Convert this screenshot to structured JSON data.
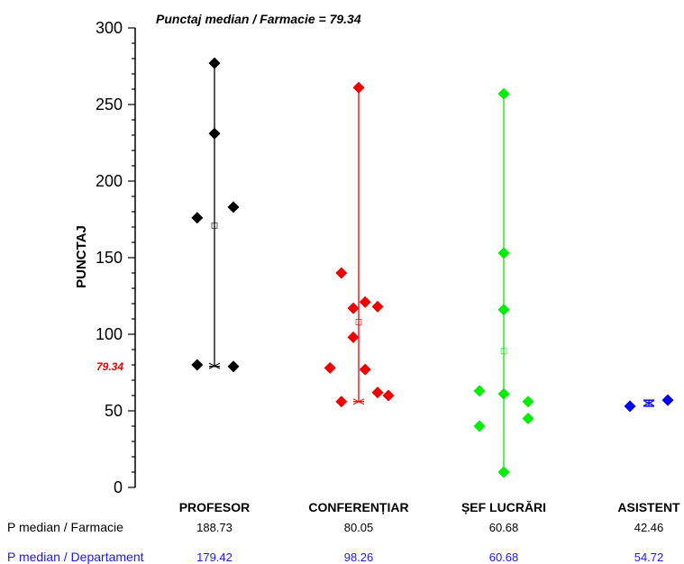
{
  "chart_data": {
    "type": "scatter",
    "title": "Punctaj median / Farmacie = 79.34",
    "ylabel": "PUNCTAJ",
    "xlabel": "",
    "ylim": [
      0,
      300
    ],
    "y_ticks": [
      "0",
      "50",
      "100",
      "150",
      "200",
      "250",
      "300"
    ],
    "reference_line": {
      "label": "79.34",
      "value": 79.34,
      "color": "#e00000"
    },
    "categories": [
      "PROFESOR",
      "CONFERENȚIAR",
      "ȘEF LUCRĂRI",
      "ASISTENT"
    ],
    "series": [
      {
        "category": "PROFESOR",
        "color": "#000000",
        "points": [
          {
            "offset": 0.0,
            "y": 277
          },
          {
            "offset": 0.0,
            "y": 231
          },
          {
            "offset": 0.35,
            "y": 183
          },
          {
            "offset": -0.32,
            "y": 176
          },
          {
            "offset": -0.32,
            "y": 80
          },
          {
            "offset": 0.35,
            "y": 79
          }
        ],
        "range": [
          79,
          277
        ],
        "mean": 171,
        "median_marker": 79.34
      },
      {
        "category": "CONFERENȚIAR",
        "color": "#ee0000",
        "points": [
          {
            "offset": 0.0,
            "y": 261
          },
          {
            "offset": -0.32,
            "y": 140
          },
          {
            "offset": 0.12,
            "y": 121
          },
          {
            "offset": -0.1,
            "y": 117
          },
          {
            "offset": 0.35,
            "y": 118
          },
          {
            "offset": -0.1,
            "y": 98
          },
          {
            "offset": -0.53,
            "y": 78
          },
          {
            "offset": 0.12,
            "y": 77
          },
          {
            "offset": 0.35,
            "y": 62
          },
          {
            "offset": 0.55,
            "y": 60
          },
          {
            "offset": -0.32,
            "y": 56
          }
        ],
        "range": [
          56,
          261
        ],
        "mean": 108,
        "median_marker": 56
      },
      {
        "category": "ȘEF LUCRĂRI",
        "color": "#00ee00",
        "points": [
          {
            "offset": 0.0,
            "y": 257
          },
          {
            "offset": 0.0,
            "y": 153
          },
          {
            "offset": 0.0,
            "y": 116
          },
          {
            "offset": -0.45,
            "y": 63
          },
          {
            "offset": 0.0,
            "y": 61
          },
          {
            "offset": 0.45,
            "y": 56
          },
          {
            "offset": 0.45,
            "y": 45
          },
          {
            "offset": -0.45,
            "y": 40
          },
          {
            "offset": 0.0,
            "y": 10
          }
        ],
        "range": [
          10,
          257
        ],
        "mean": 89,
        "median_marker": null
      },
      {
        "category": "ASISTENT",
        "color": "#0000ee",
        "points": [
          {
            "offset": -0.35,
            "y": 53
          },
          {
            "offset": 0.35,
            "y": 57
          }
        ],
        "range": [
          53,
          57
        ],
        "mean": 55,
        "median_marker": 55
      }
    ],
    "footer_rows": [
      {
        "label": "P median / Farmacie",
        "color": "#000000",
        "values": [
          "188.73",
          "80.05",
          "60.68",
          "42.46"
        ]
      },
      {
        "label": "P median / Departament",
        "color": "#1a1aee",
        "values": [
          "179.42",
          "98.26",
          "60.68",
          "54.72"
        ]
      }
    ]
  }
}
